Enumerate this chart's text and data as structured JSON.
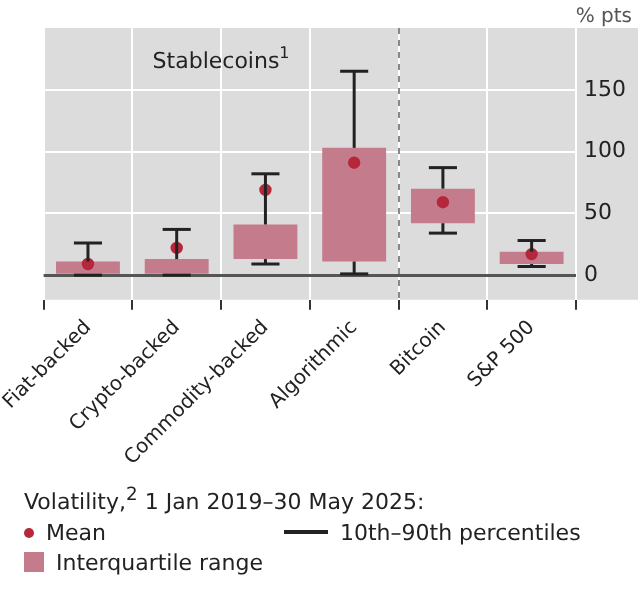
{
  "chart_data": {
    "type": "box",
    "ylabel": "% pts",
    "legend_title": "Volatility,$^{2}$ 1 Jan 2019–30 May 2025:",
    "categories": [
      "Fiat-backed",
      "Crypto-backed",
      "Commodity-backed",
      "Algorithmic",
      "Bitcoin",
      "S&P 500"
    ],
    "series": [
      {
        "type": "box",
        "name": "Interquartile range",
        "color": "#c47b8c",
        "boxes": [
          {
            "low": 0,
            "q1": 0,
            "median": null,
            "q3": 11,
            "high": 26
          },
          {
            "low": 0,
            "q1": 0,
            "median": null,
            "q3": 13,
            "high": 37
          },
          {
            "low": 9,
            "q1": 13,
            "median": null,
            "q3": 41,
            "high": 82
          },
          {
            "low": 1,
            "q1": 11,
            "median": null,
            "q3": 103,
            "high": 165
          },
          {
            "low": 34,
            "q1": 42,
            "median": null,
            "q3": 70,
            "high": 87
          },
          {
            "low": 7,
            "q1": 9,
            "median": null,
            "q3": 19,
            "high": 28
          }
        ]
      },
      {
        "type": "scatter",
        "name": "Mean",
        "color": "#b5273a",
        "x": [
          "Fiat-backed",
          "Crypto-backed",
          "Commodity-backed",
          "Algorithmic",
          "Bitcoin",
          "S&P 500"
        ],
        "values": [
          9,
          22,
          69,
          91,
          59,
          17
        ]
      }
    ],
    "ylim": [
      -20,
      200
    ],
    "yticks": [
      0,
      50,
      100,
      150
    ],
    "grid": true,
    "legend": "bottom",
    "marker": "circle",
    "annotations": [
      "Stablecoins$^{1}$",
      "10th–90th percentiles"
    ]
  }
}
